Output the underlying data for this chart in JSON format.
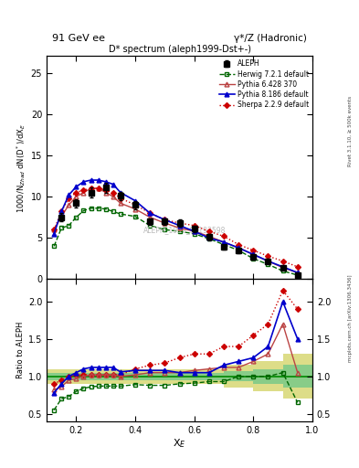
{
  "title_top": "91 GeV ee",
  "title_right": "γ*/Z (Hadronic)",
  "plot_title": "D* spectrum (aleph1999-Dst+-)",
  "ylabel_main": "1000/N$_{Zhad}$ dN(D$^*$)/dX$_E$",
  "ylabel_ratio": "Ratio to ALEPH",
  "xlabel": "X$_E$",
  "watermark": "ALEPH_1999_S4193598",
  "right_label": "Rivet 3.1.10, ≥ 500k events",
  "arxiv_label": "mcplots.cern.ch [arXiv:1306.3436]",
  "aleph_x": [
    0.15,
    0.2,
    0.25,
    0.3,
    0.35,
    0.4,
    0.45,
    0.5,
    0.55,
    0.6,
    0.65,
    0.7,
    0.75,
    0.8,
    0.85,
    0.9,
    0.95
  ],
  "aleph_y": [
    7.5,
    9.2,
    10.5,
    11.1,
    10.1,
    9.0,
    7.0,
    7.0,
    6.8,
    6.1,
    5.1,
    3.9,
    3.5,
    2.7,
    2.2,
    1.4,
    0.5
  ],
  "aleph_yerr": [
    0.5,
    0.5,
    0.6,
    0.6,
    0.5,
    0.5,
    0.4,
    0.4,
    0.4,
    0.4,
    0.35,
    0.3,
    0.3,
    0.3,
    0.25,
    0.2,
    0.15
  ],
  "herwig_x": [
    0.125,
    0.15,
    0.175,
    0.2,
    0.225,
    0.25,
    0.275,
    0.3,
    0.325,
    0.35,
    0.4,
    0.45,
    0.5,
    0.55,
    0.6,
    0.65,
    0.7,
    0.75,
    0.8,
    0.85,
    0.9,
    0.95
  ],
  "herwig_y": [
    4.0,
    6.2,
    6.5,
    7.5,
    8.3,
    8.6,
    8.6,
    8.5,
    8.2,
    7.9,
    7.6,
    6.5,
    6.0,
    5.8,
    5.5,
    4.9,
    4.2,
    3.5,
    2.5,
    1.8,
    1.0,
    0.5
  ],
  "pythia6_x": [
    0.125,
    0.15,
    0.175,
    0.2,
    0.225,
    0.25,
    0.275,
    0.3,
    0.325,
    0.35,
    0.4,
    0.45,
    0.5,
    0.55,
    0.6,
    0.65,
    0.7,
    0.75,
    0.8,
    0.85,
    0.9,
    0.95
  ],
  "pythia6_y": [
    6.0,
    7.6,
    9.0,
    10.0,
    10.5,
    11.0,
    11.0,
    10.5,
    10.0,
    9.2,
    8.5,
    7.5,
    6.8,
    6.2,
    5.8,
    5.2,
    4.5,
    3.8,
    3.0,
    2.2,
    1.4,
    0.8
  ],
  "pythia8_x": [
    0.125,
    0.15,
    0.175,
    0.2,
    0.225,
    0.25,
    0.275,
    0.3,
    0.325,
    0.35,
    0.4,
    0.45,
    0.5,
    0.55,
    0.6,
    0.65,
    0.7,
    0.75,
    0.8,
    0.85,
    0.9,
    0.95
  ],
  "pythia8_y": [
    5.5,
    8.2,
    10.2,
    11.2,
    11.8,
    12.0,
    12.0,
    11.8,
    11.5,
    10.5,
    9.5,
    8.0,
    7.2,
    6.5,
    5.8,
    5.0,
    4.5,
    3.8,
    3.0,
    2.2,
    1.5,
    0.8
  ],
  "sherpa_x": [
    0.125,
    0.15,
    0.175,
    0.2,
    0.225,
    0.25,
    0.275,
    0.3,
    0.325,
    0.35,
    0.4,
    0.45,
    0.5,
    0.55,
    0.6,
    0.65,
    0.7,
    0.75,
    0.8,
    0.85,
    0.9,
    0.95
  ],
  "sherpa_y": [
    6.0,
    8.2,
    9.8,
    10.5,
    10.8,
    11.0,
    11.0,
    10.8,
    10.5,
    9.8,
    9.0,
    8.0,
    7.2,
    6.8,
    6.5,
    5.8,
    5.2,
    4.2,
    3.5,
    2.8,
    2.2,
    1.5
  ],
  "ratio_x": [
    0.125,
    0.15,
    0.175,
    0.2,
    0.225,
    0.25,
    0.275,
    0.3,
    0.325,
    0.35,
    0.4,
    0.45,
    0.5,
    0.55,
    0.6,
    0.65,
    0.7,
    0.75,
    0.8,
    0.85,
    0.9,
    0.95
  ],
  "ratio_herwig": [
    0.55,
    0.7,
    0.73,
    0.8,
    0.84,
    0.86,
    0.87,
    0.87,
    0.87,
    0.87,
    0.89,
    0.88,
    0.88,
    0.9,
    0.91,
    0.93,
    0.93,
    1.0,
    1.0,
    1.0,
    1.05,
    0.65
  ],
  "ratio_pythia6": [
    0.82,
    0.86,
    0.95,
    0.97,
    1.0,
    1.02,
    1.02,
    1.02,
    1.02,
    1.0,
    1.02,
    1.05,
    1.05,
    1.05,
    1.08,
    1.1,
    1.12,
    1.12,
    1.2,
    1.3,
    1.7,
    1.05
  ],
  "ratio_pythia8": [
    0.78,
    0.9,
    1.0,
    1.05,
    1.1,
    1.12,
    1.12,
    1.12,
    1.12,
    1.06,
    1.08,
    1.08,
    1.08,
    1.05,
    1.05,
    1.05,
    1.15,
    1.2,
    1.25,
    1.4,
    2.0,
    1.5
  ],
  "ratio_sherpa": [
    0.9,
    0.95,
    1.0,
    1.02,
    1.02,
    1.02,
    1.02,
    1.02,
    1.02,
    1.02,
    1.1,
    1.15,
    1.18,
    1.25,
    1.3,
    1.3,
    1.4,
    1.4,
    1.55,
    1.7,
    2.15,
    1.9
  ],
  "band_x_edges": [
    0.1,
    0.2,
    0.3,
    0.4,
    0.5,
    0.6,
    0.7,
    0.8,
    0.9,
    1.0
  ],
  "band_inner": [
    0.05,
    0.05,
    0.05,
    0.05,
    0.05,
    0.05,
    0.07,
    0.1,
    0.15,
    0.4
  ],
  "band_outer": [
    0.1,
    0.1,
    0.1,
    0.1,
    0.1,
    0.1,
    0.15,
    0.2,
    0.3,
    0.6
  ],
  "xlim": [
    0.1,
    1.0
  ],
  "ylim_main": [
    0,
    27
  ],
  "ylim_ratio": [
    0.4,
    2.3
  ],
  "yticks_main": [
    0,
    5,
    10,
    15,
    20,
    25
  ],
  "yticks_ratio": [
    0.5,
    1.0,
    1.5,
    2.0
  ],
  "xticks": [
    0.2,
    0.4,
    0.6,
    0.8,
    1.0
  ],
  "color_aleph": "#000000",
  "color_herwig": "#006600",
  "color_pythia6": "#bb4444",
  "color_pythia8": "#0000cc",
  "color_sherpa": "#cc0000",
  "color_band_inner": "#88cc88",
  "color_band_outer": "#dddd88",
  "bg_color": "#ffffff"
}
